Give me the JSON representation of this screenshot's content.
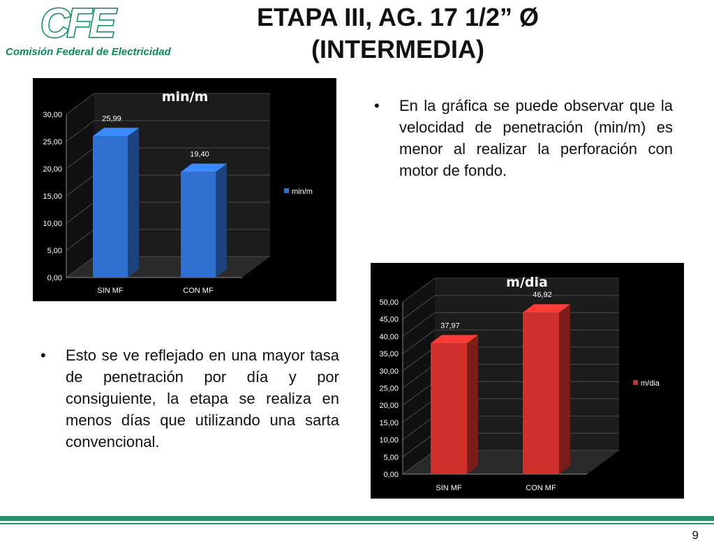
{
  "logo": {
    "mark": "CFE",
    "caption": "Comisión Federal de Electricidad"
  },
  "title": {
    "line1": "ETAPA III,  AG. 17 1/2” Ø",
    "line2": "(INTERMEDIA)"
  },
  "bullets": {
    "first": "En la gráfica se puede observar que la velocidad de penetración (min/m) es menor al realizar la perforación con motor de fondo.",
    "second": "Esto se ve reflejado en una mayor tasa de penetración por día y por consiguiente, la etapa se realiza en menos días que utilizando una sarta convencional.",
    "symbol": "•"
  },
  "page_number": "9",
  "chart_data": [
    {
      "type": "bar",
      "title": "min/m",
      "categories": [
        "SIN MF",
        "CON MF"
      ],
      "series": [
        {
          "name": "min/m",
          "values": [
            25.99,
            19.4
          ],
          "labels": [
            "25,99",
            "19,40"
          ],
          "color": "#2f6fd0"
        }
      ],
      "ylim": [
        0,
        30
      ],
      "yticks": [
        "0,00",
        "5,00",
        "10,00",
        "15,00",
        "20,00",
        "25,00",
        "30,00"
      ],
      "legend": "right",
      "grid": true
    },
    {
      "type": "bar",
      "title": "m/dia",
      "categories": [
        "SIN MF",
        "CON MF"
      ],
      "series": [
        {
          "name": "m/dia",
          "values": [
            37.97,
            46.92
          ],
          "labels": [
            "37,97",
            "46,92"
          ],
          "color": "#d0302b"
        }
      ],
      "ylim": [
        0,
        50
      ],
      "yticks": [
        "0,00",
        "5,00",
        "10,00",
        "15,00",
        "20,00",
        "25,00",
        "30,00",
        "35,00",
        "40,00",
        "45,00",
        "50,00"
      ],
      "legend": "right",
      "grid": true
    }
  ]
}
